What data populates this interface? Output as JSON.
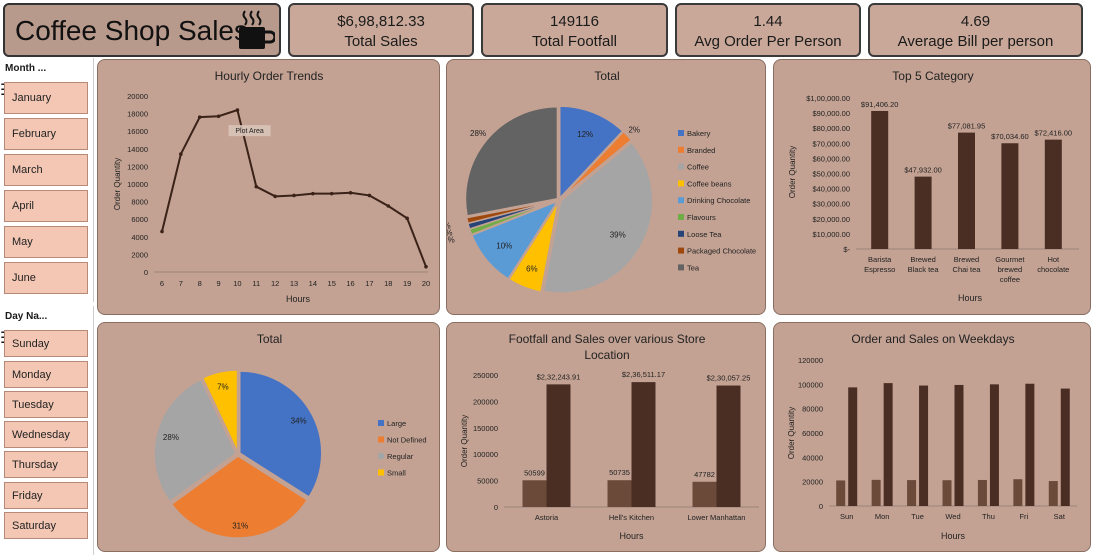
{
  "title": "Coffee Shop Sales",
  "kpis": [
    {
      "value": "$6,98,812.33",
      "label": "Total Sales"
    },
    {
      "value": "149116",
      "label": "Total Footfall"
    },
    {
      "value": "1.44",
      "label": "Avg Order Per Person"
    },
    {
      "value": "4.69",
      "label": "Average Bill per person"
    }
  ],
  "colors": {
    "panel": "#c3a293",
    "bar_dark": "#4a2e24",
    "bar_light": "#6b4a3a",
    "line": "#3b2218",
    "slicer": "#f4c7b4"
  },
  "month_slicer": {
    "header": "Month ...",
    "items": [
      "January",
      "February",
      "March",
      "April",
      "May",
      "June"
    ]
  },
  "day_slicer": {
    "header": "Day Na...",
    "items": [
      "Sunday",
      "Monday",
      "Tuesday",
      "Wednesday",
      "Thursday",
      "Friday",
      "Saturday"
    ]
  },
  "chart_data": [
    {
      "id": "hourly",
      "type": "line",
      "title": "Hourly Order Trends",
      "xlabel": "Hours",
      "ylabel": "Order Quantity",
      "x": [
        "6",
        "7",
        "8",
        "9",
        "10",
        "11",
        "12",
        "13",
        "14",
        "15",
        "16",
        "17",
        "18",
        "19",
        "20"
      ],
      "values": [
        4600,
        13400,
        17600,
        17700,
        18400,
        9700,
        8600,
        8700,
        8900,
        8900,
        9000,
        8700,
        7500,
        6100,
        600
      ],
      "ylim": [
        0,
        20000
      ],
      "yticks": [
        "0",
        "2000",
        "4000",
        "6000",
        "8000",
        "10000",
        "12000",
        "14000",
        "16000",
        "18000",
        "20000"
      ],
      "annotation": "Plot Area"
    },
    {
      "id": "category_pie",
      "type": "pie",
      "title": "Total",
      "labels": [
        "Bakery",
        "Branded",
        "Coffee",
        "Coffee beans",
        "Drinking Chocolate",
        "Flavours",
        "Loose Tea",
        "Packaged Chocolate",
        "Tea"
      ],
      "values": [
        12,
        2,
        39,
        6,
        10,
        1,
        1,
        1,
        28
      ],
      "value_labels": [
        "12%",
        "2%",
        "39%",
        "6%",
        "10%",
        "1%",
        "1%",
        "1%",
        "28%"
      ],
      "colors": [
        "#4472c4",
        "#ed7d31",
        "#a5a5a5",
        "#ffc000",
        "#5b9bd5",
        "#70ad47",
        "#264478",
        "#9e480e",
        "#636363"
      ],
      "legend": "right"
    },
    {
      "id": "top5",
      "type": "bar",
      "title": "Top 5 Category",
      "xlabel": "Hours",
      "ylabel": "Order Quantity",
      "categories": [
        [
          "Barista",
          "Espresso"
        ],
        [
          "Brewed",
          "Black tea"
        ],
        [
          "Brewed",
          "Chai tea"
        ],
        [
          "Gourmet",
          "brewed",
          "coffee"
        ],
        [
          "Hot",
          "chocolate"
        ]
      ],
      "values": [
        91406.2,
        47932.0,
        77081.95,
        70034.6,
        72416.0
      ],
      "value_labels": [
        "$91,406.20",
        "$47,932.00",
        "$77,081.95",
        "$70,034.60",
        "$72,416.00"
      ],
      "ylim": [
        0,
        100000
      ],
      "yticks": [
        "$-",
        "$10,000.00",
        "$20,000.00",
        "$30,000.00",
        "$40,000.00",
        "$50,000.00",
        "$60,000.00",
        "$70,000.00",
        "$80,000.00",
        "$90,000.00",
        "$1,00,000.00"
      ]
    },
    {
      "id": "size_pie",
      "type": "pie",
      "title": "Total",
      "labels": [
        "Large",
        "Not Defined",
        "Regular",
        "Small"
      ],
      "values": [
        34,
        31,
        28,
        7
      ],
      "value_labels": [
        "34%",
        "31%",
        "28%",
        "7%"
      ],
      "colors": [
        "#4472c4",
        "#ed7d31",
        "#a5a5a5",
        "#ffc000"
      ],
      "legend": "right"
    },
    {
      "id": "store",
      "type": "bar",
      "title": "Footfall and Sales over various Store Location",
      "xlabel": "Hours",
      "ylabel": "Order Quantity",
      "categories": [
        "Astoria",
        "Hell's Kitchen",
        "Lower Manhattan"
      ],
      "series": [
        {
          "values": [
            50599,
            50735,
            47782
          ],
          "value_labels": [
            "50599",
            "50735",
            "47782"
          ]
        },
        {
          "values": [
            232243.91,
            236511.17,
            230057.25
          ],
          "value_labels": [
            "$2,32,243.91",
            "$2,36,511.17",
            "$2,30,057.25"
          ]
        }
      ],
      "ylim": [
        0,
        250000
      ],
      "yticks": [
        "0",
        "50000",
        "100000",
        "150000",
        "200000",
        "250000"
      ]
    },
    {
      "id": "weekdays",
      "type": "bar",
      "title": "Order and Sales on Weekdays",
      "xlabel": "Hours",
      "ylabel": "Order Quantity",
      "categories": [
        "Sun",
        "Mon",
        "Tue",
        "Wed",
        "Thu",
        "Fri",
        "Sat"
      ],
      "series": [
        {
          "values": [
            21000,
            21500,
            21300,
            21200,
            21400,
            22000,
            20500
          ]
        },
        {
          "values": [
            97500,
            101000,
            99000,
            99500,
            100000,
            100500,
            96500
          ]
        }
      ],
      "ylim": [
        0,
        120000
      ],
      "yticks": [
        "0",
        "20000",
        "40000",
        "60000",
        "80000",
        "100000",
        "120000"
      ]
    }
  ]
}
